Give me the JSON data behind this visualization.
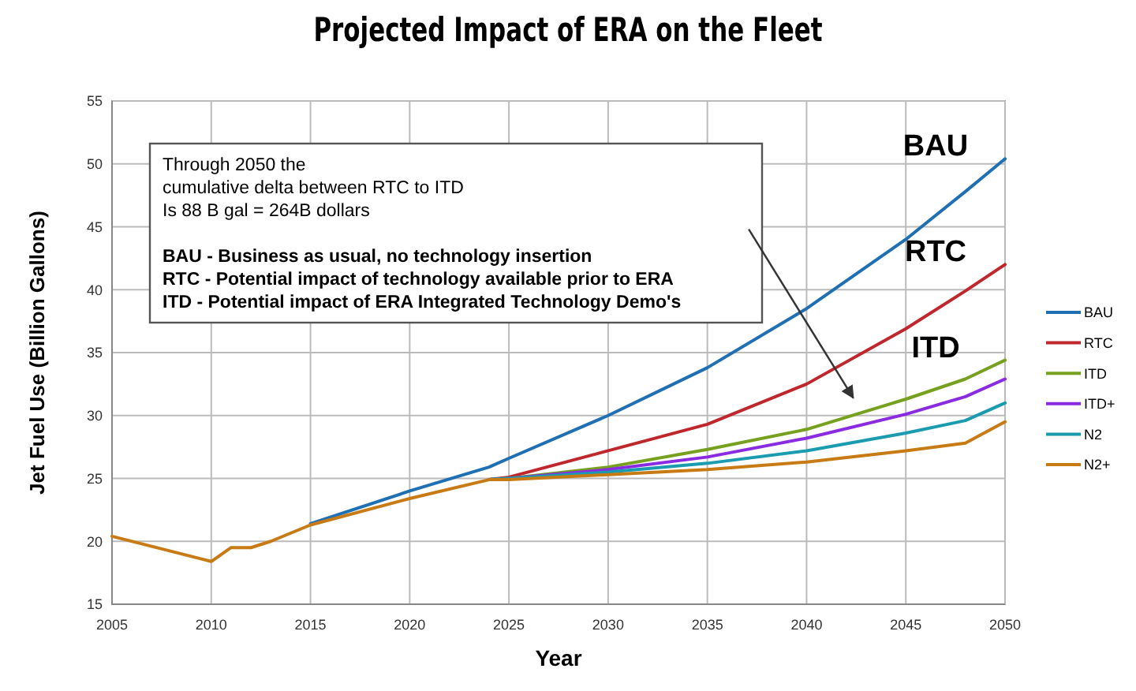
{
  "chart_data": {
    "type": "line",
    "title": "Projected Impact of ERA on the Fleet",
    "xlabel": "Year",
    "ylabel": "Jet Fuel Use (Billion Gallons)",
    "x": [
      2005,
      2010,
      2011,
      2012,
      2013,
      2015,
      2020,
      2024,
      2025,
      2030,
      2035,
      2040,
      2045,
      2048,
      2050
    ],
    "series": [
      {
        "name": "BAU",
        "color": "#1f6fb4",
        "values": [
          null,
          null,
          null,
          null,
          null,
          21.4,
          24.0,
          25.9,
          26.6,
          30.0,
          33.8,
          38.5,
          44.0,
          47.8,
          50.4
        ]
      },
      {
        "name": "RTC",
        "color": "#c0272d",
        "values": [
          null,
          null,
          null,
          null,
          null,
          null,
          null,
          24.9,
          25.1,
          27.2,
          29.3,
          32.5,
          36.9,
          39.9,
          42.0
        ]
      },
      {
        "name": "ITD",
        "color": "#77a01e",
        "values": [
          null,
          null,
          null,
          null,
          null,
          null,
          null,
          24.9,
          25.0,
          25.9,
          27.3,
          28.9,
          31.3,
          32.9,
          34.4
        ]
      },
      {
        "name": "ITD+",
        "color": "#8a2be2",
        "values": [
          null,
          null,
          null,
          null,
          null,
          null,
          null,
          24.9,
          25.0,
          25.7,
          26.7,
          28.2,
          30.1,
          31.5,
          32.9
        ]
      },
      {
        "name": "N2",
        "color": "#1a9bb0",
        "values": [
          null,
          null,
          null,
          null,
          null,
          null,
          null,
          24.9,
          25.0,
          25.5,
          26.2,
          27.2,
          28.6,
          29.6,
          31.0
        ]
      },
      {
        "name": "N2+",
        "color": "#c87a14",
        "values": [
          20.4,
          18.4,
          19.5,
          19.5,
          20.0,
          21.3,
          23.4,
          24.9,
          24.9,
          25.3,
          25.7,
          26.3,
          27.2,
          27.8,
          29.5
        ]
      }
    ],
    "xlim": [
      2005,
      2050
    ],
    "xticks": [
      2005,
      2010,
      2015,
      2020,
      2025,
      2030,
      2035,
      2040,
      2045,
      2050
    ],
    "ylim": [
      15,
      55
    ],
    "yticks": [
      15,
      20,
      25,
      30,
      35,
      40,
      45,
      50,
      55
    ],
    "grid": true,
    "legend": "right",
    "marker": "none",
    "line_style": "solid",
    "annotations": [
      "Through 2050 the\ncumulative delta between RTC to ITD\nIs 88 B gal = 264B dollars\n\nBAU - Business as usual, no technology insertion\nRTC - Potential impact of technology available prior to ERA\nITD - Potential impact of ERA Integrated Technology Demo's",
      "BAU",
      "RTC",
      "ITD"
    ]
  }
}
